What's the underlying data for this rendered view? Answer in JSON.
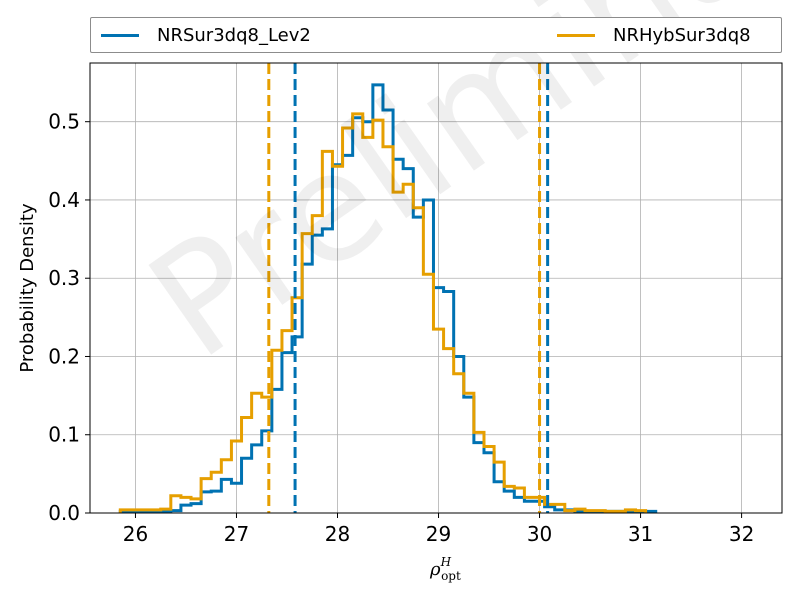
{
  "watermark": "Preliminary",
  "chart_data": {
    "type": "histogram",
    "xlabel": "ρ_opt^H",
    "ylabel": "Probability Density",
    "xlim": [
      25.55,
      32.4
    ],
    "ylim": [
      0,
      0.575
    ],
    "xticks": [
      26,
      27,
      28,
      29,
      30,
      31,
      32
    ],
    "yticks": [
      0.0,
      0.1,
      0.2,
      0.3,
      0.4,
      0.5
    ],
    "grid": true,
    "legend_position": "top (outside, two columns)",
    "bin_edges": [
      25.85,
      25.95,
      26.05,
      26.15,
      26.25,
      26.35,
      26.45,
      26.55,
      26.65,
      26.75,
      26.85,
      26.95,
      27.05,
      27.15,
      27.25,
      27.35,
      27.45,
      27.55,
      27.65,
      27.75,
      27.85,
      27.95,
      28.05,
      28.15,
      28.25,
      28.35,
      28.45,
      28.55,
      28.65,
      28.75,
      28.85,
      28.95,
      29.05,
      29.15,
      29.25,
      29.35,
      29.45,
      29.55,
      29.65,
      29.75,
      29.85,
      29.95,
      30.05,
      30.15,
      30.25,
      30.35,
      30.45,
      30.55,
      30.65,
      30.75,
      30.85,
      30.95,
      31.05,
      31.15,
      31.25,
      31.35,
      31.45,
      31.55,
      31.65,
      31.75,
      31.85,
      31.95,
      32.05,
      32.15
    ],
    "series": [
      {
        "name": "NRSur3dq8_Lev2",
        "color": "#0072b2",
        "densities": [
          0.002,
          0.002,
          0.002,
          0.002,
          0.002,
          0.003,
          0.01,
          0.012,
          0.027,
          0.028,
          0.043,
          0.038,
          0.07,
          0.087,
          0.105,
          0.158,
          0.205,
          0.225,
          0.318,
          0.355,
          0.363,
          0.445,
          0.457,
          0.505,
          0.5,
          0.547,
          0.515,
          0.452,
          0.44,
          0.378,
          0.4,
          0.288,
          0.283,
          0.2,
          0.148,
          0.09,
          0.077,
          0.04,
          0.028,
          0.02,
          0.015,
          0.015,
          0.008,
          0.004,
          0.004,
          0.002,
          0.002,
          0.002,
          0.002,
          0.002,
          0.002,
          0.002,
          0.002
        ],
        "interval": [
          27.58,
          30.08
        ]
      },
      {
        "name": "NRHybSur3dq8",
        "color": "#e69f00",
        "densities": [
          0.004,
          0.004,
          0.004,
          0.004,
          0.005,
          0.022,
          0.02,
          0.018,
          0.044,
          0.052,
          0.068,
          0.092,
          0.122,
          0.153,
          0.148,
          0.208,
          0.233,
          0.275,
          0.357,
          0.38,
          0.462,
          0.443,
          0.492,
          0.51,
          0.48,
          0.502,
          0.468,
          0.41,
          0.42,
          0.39,
          0.305,
          0.235,
          0.21,
          0.178,
          0.153,
          0.103,
          0.085,
          0.065,
          0.034,
          0.032,
          0.02,
          0.02,
          0.011,
          0.011,
          0.003,
          0.005,
          0.003,
          0.003,
          0.002,
          0.002,
          0.004,
          0.003
        ],
        "interval": [
          27.32,
          30.0
        ]
      }
    ]
  }
}
